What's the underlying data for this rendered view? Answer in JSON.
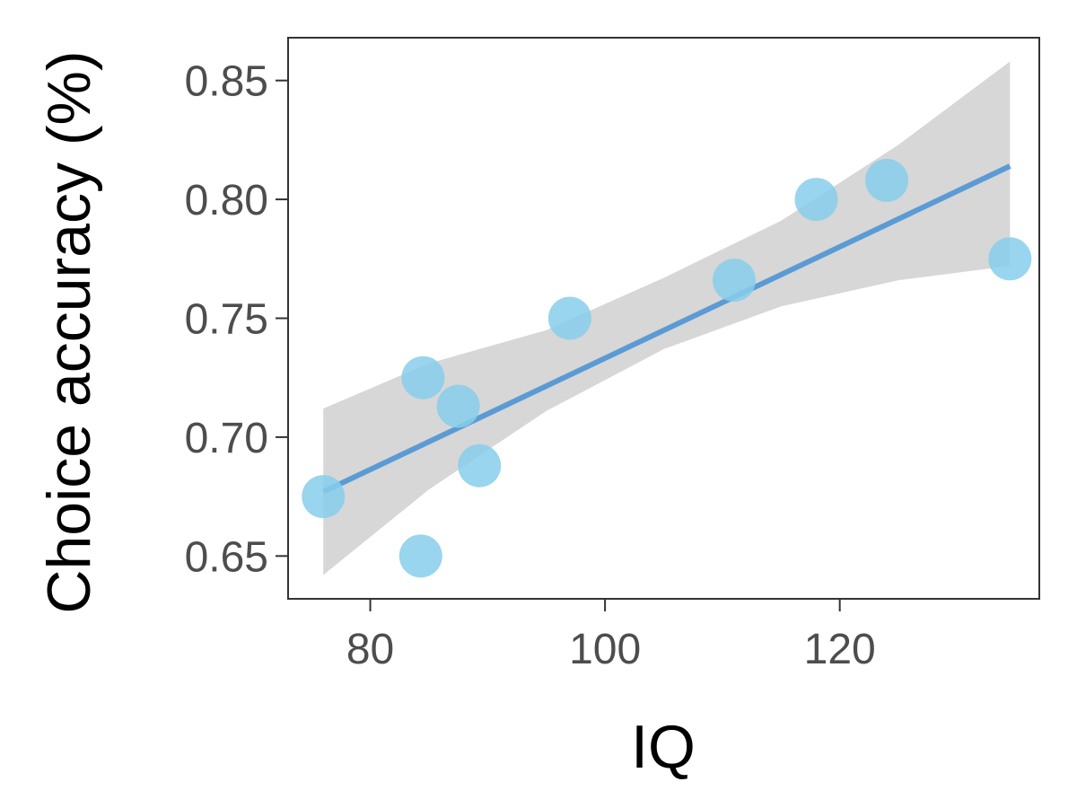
{
  "chart_data": {
    "type": "scatter",
    "title": "",
    "xlabel": "IQ",
    "ylabel": "Choice accuracy (%)",
    "xlim": [
      73,
      137
    ],
    "ylim": [
      0.632,
      0.868
    ],
    "xticks": [
      80,
      100,
      120
    ],
    "xtick_labels": [
      "80",
      "100",
      "120"
    ],
    "yticks": [
      0.65,
      0.7,
      0.75,
      0.8,
      0.85
    ],
    "ytick_labels": [
      "0.65",
      "0.70",
      "0.75",
      "0.80",
      "0.85"
    ],
    "grid": false,
    "legend": "none",
    "points": [
      {
        "x": 76,
        "y": 0.675
      },
      {
        "x": 84.3,
        "y": 0.65
      },
      {
        "x": 84.5,
        "y": 0.725
      },
      {
        "x": 87.5,
        "y": 0.713
      },
      {
        "x": 89.3,
        "y": 0.688
      },
      {
        "x": 97,
        "y": 0.75
      },
      {
        "x": 111,
        "y": 0.766
      },
      {
        "x": 118,
        "y": 0.8
      },
      {
        "x": 124,
        "y": 0.808
      },
      {
        "x": 134.5,
        "y": 0.775
      }
    ],
    "fit_line": {
      "x": [
        76,
        134.5
      ],
      "y": [
        0.677,
        0.814
      ]
    },
    "confidence_band": {
      "x": [
        76,
        85,
        95,
        105,
        115,
        125,
        134.5
      ],
      "lower": [
        0.642,
        0.678,
        0.711,
        0.737,
        0.755,
        0.766,
        0.772
      ],
      "upper": [
        0.712,
        0.731,
        0.745,
        0.767,
        0.791,
        0.823,
        0.858
      ]
    },
    "colors": {
      "point": "#87ceeb",
      "line": "#5b9bd5",
      "band": "#d3d3d3",
      "axis": "#333333"
    }
  }
}
